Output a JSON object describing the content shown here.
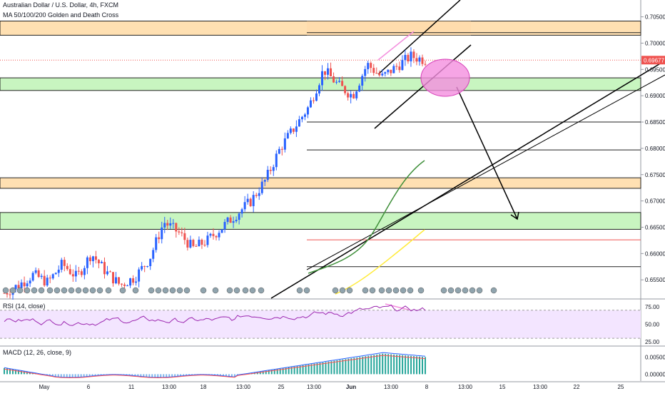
{
  "header": {
    "title": "Australian Dollar / U.S. Dollar, 4h, FXCM",
    "indicator": "MA 50/100/200 Golden and Death Cross"
  },
  "price_axis": {
    "ticks": [
      "0.70500",
      "0.70000",
      "0.69500",
      "0.69000",
      "0.68500",
      "0.68000",
      "0.67500",
      "0.67000",
      "0.66500",
      "0.66000",
      "0.65500"
    ],
    "last_price": "0.69677"
  },
  "rsi": {
    "label": "RSI (14, close)",
    "ticks": [
      "75.00",
      "50.00",
      "25.00"
    ]
  },
  "macd": {
    "label": "MACD (12, 26, close, 9)",
    "ticks": [
      "0.00500",
      "0.00000"
    ]
  },
  "time_axis": {
    "labels": [
      "May",
      "6",
      "11",
      "13:00",
      "18",
      "13:00",
      "25",
      "13:00",
      "Jun",
      "13:00",
      "8",
      "13:00",
      "15",
      "13:00",
      "22",
      "25"
    ]
  },
  "colors": {
    "up": "#2962ff",
    "down": "#ef5350",
    "supply_zone": "#ffe0b2",
    "demand_zone": "#c8f5c0",
    "ma_green": "#4caf50",
    "ma_yellow": "#ffeb3b",
    "rsi_line": "#9c27b0",
    "rsi_band": "#f3e5ff",
    "macd_line": "#2962ff",
    "signal_line": "#ff5252",
    "last_price_bg": "#ef5350",
    "target_circle": "#f48fde"
  },
  "chart_data": {
    "type": "candlestick",
    "title": "Australian Dollar / U.S. Dollar, 4h, FXCM",
    "ylim": [
      0.6515,
      0.7082
    ],
    "close_path": [
      0.6525,
      0.654,
      0.656,
      0.6545,
      0.658,
      0.6555,
      0.66,
      0.6565,
      0.654,
      0.6555,
      0.659,
      0.666,
      0.664,
      0.661,
      0.6625,
      0.665,
      0.6675,
      0.67,
      0.674,
      0.68,
      0.684,
      0.688,
      0.695,
      0.692,
      0.69,
      0.696,
      0.6935,
      0.6955,
      0.6975,
      0.6968
    ],
    "zones": [
      {
        "kind": "supply",
        "from": 0.7015,
        "to": 0.7042
      },
      {
        "kind": "demand",
        "from": 0.691,
        "to": 0.6934
      },
      {
        "kind": "supply",
        "from": 0.6724,
        "to": 0.6744
      },
      {
        "kind": "demand",
        "from": 0.6646,
        "to": 0.6678
      }
    ],
    "horizontal_levels": [
      0.685,
      0.6797,
      0.6626,
      0.6575
    ],
    "last_price": 0.69677,
    "rsi_ylim": [
      20,
      85
    ],
    "rsi_reference": [
      70,
      30
    ],
    "macd_ylim": [
      -0.002,
      0.008
    ]
  }
}
